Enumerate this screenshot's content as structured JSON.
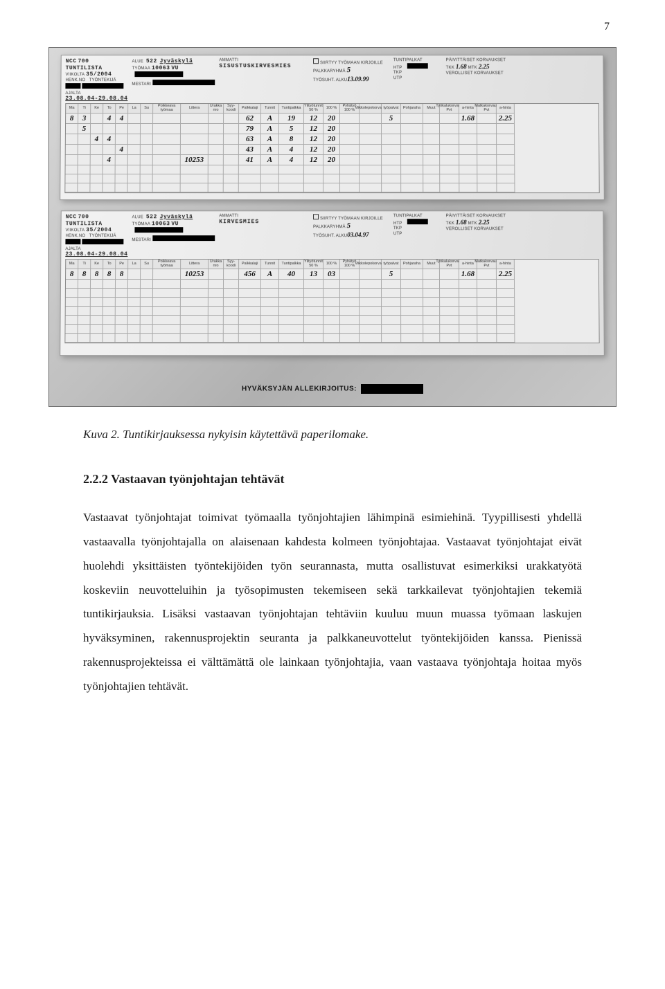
{
  "page_number": "7",
  "caption": "Kuva 2. Tuntikirjauksessa nykyisin käytettävä paperilomake.",
  "heading": "2.2.2   Vastaavan työnjohtajan tehtävät",
  "body_p1": "Vastaavat työnjohtajat toimivat työmaalla työnjohtajien lähimpinä esimiehinä. Tyypillisesti yhdellä vastaavalla työnjohtajalla on alaisenaan kahdesta kolmeen työnjohtajaa. Vastaavat työnjohtajat eivät huolehdi yksittäisten työntekijöiden työn seurannasta, mutta osallistuvat esimerkiksi urakkatyötä koskeviin neuvotteluihin ja työsopimusten tekemiseen sekä tarkkailevat työnjohtajien tekemiä tuntikirjauksia. Lisäksi vastaavan työnjohtajan tehtäviin kuuluu muun muassa työmaan laskujen hyväksyminen, rakennusprojektin seuranta ja palkkaneuvottelut työntekijöiden kanssa. Pienissä rakennusprojekteissa ei välttämättä ole lainkaan työnjohtajia, vaan vastaava työnjohtaja hoitaa myös työnjohtajien tehtävät.",
  "form": {
    "company": "NCC",
    "company_code": "700",
    "form_title": "TUNTILISTA",
    "week_label": "Viikolta",
    "week": "35/2004",
    "alue_label": "ALUE",
    "alue": "522",
    "city": "Jyväskylä",
    "tyomaa_label": "TYÖMAA",
    "tyomaa": "10063",
    "tyomaa_suffix": "VU",
    "mestari_label": "MESTARI",
    "ammatti_label": "Ammatti",
    "ammatti_top": "SISUSTUSKIRVESMIES",
    "ammatti_bottom": "KIRVESMIES",
    "siirtyy": "Siirtyy työmaan kirjoille",
    "palkkaryhma_label": "PALKKARYHMÄ",
    "palkkaryhma_val": "5",
    "tyosuht_label": "TYÖSUHT. ALKU",
    "tyosuht_top": "13.09.99",
    "tyosuht_bottom": "03.04.97",
    "tuntipalkat": "TUNTIPALKAT",
    "htp": "HTP",
    "tkp": "TKP",
    "utp": "UTP",
    "paivittaiset": "PÄIVITTÄISET KORVAUKSET",
    "tkk": "TKK",
    "tkk_val": "1.68",
    "mtk": "MTK",
    "mtk_val": "2.25",
    "verolliset": "VEROLLISET korvaukset",
    "ajalta_label": "Ajalta",
    "ajalta": "23.08.04-29.08.04",
    "days": [
      "Ma",
      "Ti",
      "Ke",
      "To",
      "Pe",
      "La",
      "Su"
    ],
    "cols_misc": [
      "Poikkeava työmaa",
      "Littera",
      "Urakka nro",
      "Syy-koodi",
      "Palkkalaji",
      "Tunnit",
      "Tuntipalkka",
      "Ylityötunnit 50 %",
      "100 %",
      "Pyhätyö 100 %",
      "Viikkolepokorvaus",
      "työpalvat",
      "Pohjaraha",
      "Muut",
      "Työkalukorvaus Pvt",
      "a-hinta",
      "Matkakorvaus Pvt",
      "a-hinta"
    ],
    "approval_label": "HYVÄKSYJÄN ALLEKIRJOITUS:",
    "rows_top": [
      {
        "days": [
          "8",
          "3",
          "",
          "4",
          "4",
          "",
          ""
        ],
        "lit": "",
        "code": "62",
        "pl": "A",
        "tun": "19",
        "tp": "12",
        "tp2": "20",
        "lep": "5",
        "tkk": "1.68",
        "mtk": "2.25"
      },
      {
        "days": [
          "",
          "5",
          "",
          "",
          "",
          "",
          ""
        ],
        "lit": "",
        "code": "79",
        "pl": "A",
        "tun": "5",
        "tp": "12",
        "tp2": "20"
      },
      {
        "days": [
          "",
          "",
          "4",
          "4",
          "",
          "",
          ""
        ],
        "lit": "",
        "code": "63",
        "pl": "A",
        "tun": "8",
        "tp": "12",
        "tp2": "20"
      },
      {
        "days": [
          "",
          "",
          "",
          "",
          "4",
          "",
          ""
        ],
        "lit": "",
        "code": "43",
        "pl": "A",
        "tun": "4",
        "tp": "12",
        "tp2": "20"
      },
      {
        "days": [
          "",
          "",
          "",
          "4",
          "",
          "",
          ""
        ],
        "lit": "10253",
        "code": "41",
        "pl": "A",
        "tun": "4",
        "tp": "12",
        "tp2": "20"
      }
    ],
    "rows_bottom": [
      {
        "days": [
          "8",
          "8",
          "8",
          "8",
          "8",
          "",
          ""
        ],
        "lit": "10253",
        "code": "456",
        "pl": "A",
        "tun": "40",
        "tp": "13",
        "tp2": "03",
        "lep": "5",
        "tkk": "1.68",
        "mtk": "2.25"
      }
    ]
  },
  "colors": {
    "text": "#1a1a1a",
    "photo_border": "#666666",
    "sheet_bg_from": "#f2f2f2",
    "sheet_bg_to": "#dedede",
    "grid_line": "#aaaaaa",
    "redact": "#000000"
  }
}
